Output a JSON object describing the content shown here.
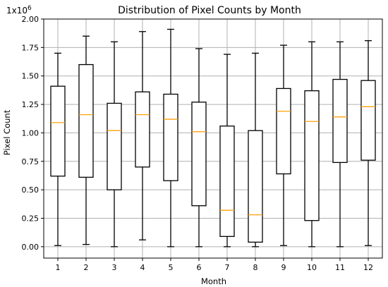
{
  "chart_data": {
    "type": "box",
    "title": "Distribution of Pixel Counts by Month",
    "xlabel": "Month",
    "ylabel": "Pixel Count",
    "y_scale_label": "1x10",
    "y_scale_exponent": "6",
    "ylim": [
      -0.1,
      2.0
    ],
    "grid": true,
    "y_ticks": [
      "0.00",
      "0.25",
      "0.50",
      "0.75",
      "1.00",
      "1.25",
      "1.50",
      "1.75",
      "2.00"
    ],
    "y_tick_values": [
      0.0,
      0.25,
      0.5,
      0.75,
      1.0,
      1.25,
      1.5,
      1.75,
      2.0
    ],
    "categories": [
      "1",
      "2",
      "3",
      "4",
      "5",
      "6",
      "7",
      "8",
      "9",
      "10",
      "11",
      "12"
    ],
    "boxes": [
      {
        "min": 0.01,
        "q1": 0.62,
        "median": 1.09,
        "q3": 1.41,
        "max": 1.7
      },
      {
        "min": 0.02,
        "q1": 0.61,
        "median": 1.16,
        "q3": 1.6,
        "max": 1.85
      },
      {
        "min": 0.0,
        "q1": 0.5,
        "median": 1.02,
        "q3": 1.26,
        "max": 1.8
      },
      {
        "min": 0.06,
        "q1": 0.7,
        "median": 1.16,
        "q3": 1.36,
        "max": 1.89
      },
      {
        "min": 0.0,
        "q1": 0.58,
        "median": 1.12,
        "q3": 1.34,
        "max": 1.91
      },
      {
        "min": 0.0,
        "q1": 0.36,
        "median": 1.01,
        "q3": 1.27,
        "max": 1.74
      },
      {
        "min": 0.0,
        "q1": 0.09,
        "median": 0.32,
        "q3": 1.06,
        "max": 1.69
      },
      {
        "min": 0.0,
        "q1": 0.04,
        "median": 0.28,
        "q3": 1.02,
        "max": 1.7
      },
      {
        "min": 0.01,
        "q1": 0.64,
        "median": 1.19,
        "q3": 1.39,
        "max": 1.77
      },
      {
        "min": 0.0,
        "q1": 0.23,
        "median": 1.1,
        "q3": 1.37,
        "max": 1.8
      },
      {
        "min": 0.0,
        "q1": 0.74,
        "median": 1.14,
        "q3": 1.47,
        "max": 1.8
      },
      {
        "min": 0.01,
        "q1": 0.76,
        "median": 1.23,
        "q3": 1.46,
        "max": 1.81
      }
    ],
    "colors": {
      "box": "#000000",
      "median": "#ff9f0e",
      "grid": "#b0b0b0"
    }
  }
}
